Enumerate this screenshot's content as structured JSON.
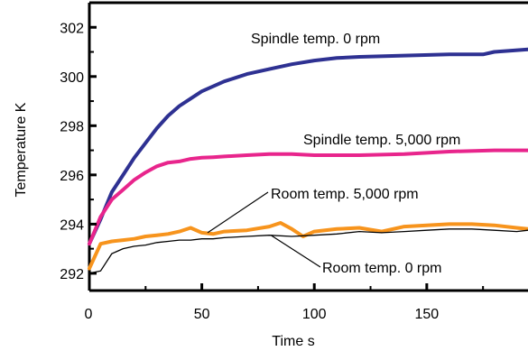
{
  "chart_data": {
    "type": "line",
    "xlabel": "Time s",
    "ylabel": "Temperature K",
    "xlim": [
      0,
      195
    ],
    "ylim": [
      291.3,
      303.0
    ],
    "xticks": [
      0,
      50,
      100,
      150
    ],
    "yticks": [
      292,
      294,
      296,
      298,
      300,
      302
    ],
    "x_tick_labels": [
      "0",
      "50",
      "100",
      "150"
    ],
    "y_tick_labels": [
      "292",
      "294",
      "296",
      "298",
      "300",
      "302"
    ],
    "grid": false,
    "series": [
      {
        "name": "Spindle temp. 0 rpm",
        "color": "#2e3192",
        "x": [
          0,
          5,
          10,
          15,
          20,
          25,
          30,
          35,
          40,
          45,
          50,
          55,
          60,
          65,
          70,
          80,
          90,
          100,
          110,
          120,
          140,
          160,
          175,
          180,
          195
        ],
        "y": [
          293.2,
          294.2,
          295.3,
          296.0,
          296.7,
          297.3,
          297.9,
          298.4,
          298.8,
          299.1,
          299.4,
          299.6,
          299.8,
          299.95,
          300.1,
          300.3,
          300.5,
          300.65,
          300.75,
          300.8,
          300.85,
          300.9,
          300.9,
          301.0,
          301.1
        ]
      },
      {
        "name": "Spindle temp. 5,000 rpm",
        "color": "#e8258c",
        "x": [
          0,
          5,
          10,
          15,
          20,
          25,
          30,
          35,
          40,
          45,
          50,
          55,
          60,
          70,
          80,
          90,
          100,
          120,
          140,
          160,
          180,
          195
        ],
        "y": [
          293.2,
          294.3,
          295.0,
          295.4,
          295.8,
          296.1,
          296.35,
          296.5,
          296.55,
          296.65,
          296.7,
          296.72,
          296.75,
          296.8,
          296.85,
          296.85,
          296.8,
          296.8,
          296.85,
          296.95,
          297.0,
          297.0
        ]
      },
      {
        "name": "Room temp. 5,000 rpm",
        "color": "#f7941d",
        "x": [
          0,
          5,
          10,
          15,
          20,
          25,
          30,
          35,
          40,
          45,
          50,
          55,
          60,
          70,
          80,
          85,
          90,
          95,
          100,
          110,
          120,
          130,
          140,
          150,
          160,
          170,
          180,
          190,
          195
        ],
        "y": [
          292.2,
          293.2,
          293.3,
          293.35,
          293.4,
          293.5,
          293.55,
          293.6,
          293.7,
          293.85,
          293.65,
          293.6,
          293.7,
          293.75,
          293.9,
          294.05,
          293.8,
          293.5,
          293.7,
          293.8,
          293.85,
          293.7,
          293.9,
          293.95,
          294.0,
          294.0,
          293.95,
          293.85,
          293.8
        ]
      },
      {
        "name": "Room temp. 0 rpm",
        "color": "#000000",
        "x": [
          0,
          5,
          10,
          15,
          20,
          25,
          30,
          35,
          40,
          45,
          50,
          55,
          60,
          70,
          80,
          90,
          100,
          110,
          120,
          130,
          140,
          150,
          160,
          170,
          180,
          190,
          195
        ],
        "y": [
          292.0,
          292.1,
          292.8,
          293.0,
          293.1,
          293.15,
          293.25,
          293.3,
          293.35,
          293.35,
          293.4,
          293.4,
          293.45,
          293.5,
          293.55,
          293.5,
          293.55,
          293.6,
          293.7,
          293.65,
          293.7,
          293.75,
          293.8,
          293.8,
          293.75,
          293.7,
          293.75
        ]
      }
    ],
    "annotations": [
      {
        "text": "Spindle temp. 0 rpm",
        "target_series": 0
      },
      {
        "text": "Spindle temp. 5,000 rpm",
        "target_series": 1
      },
      {
        "text": "Room temp. 5,000 rpm",
        "target_series": 2
      },
      {
        "text": "Room temp. 0 rpm",
        "target_series": 3
      }
    ]
  }
}
